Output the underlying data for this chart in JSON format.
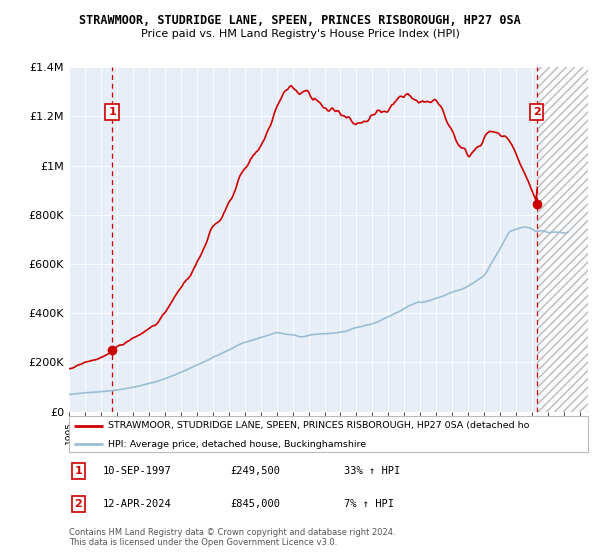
{
  "title": "STRAWMOOR, STUDRIDGE LANE, SPEEN, PRINCES RISBOROUGH, HP27 0SA",
  "subtitle": "Price paid vs. HM Land Registry's House Price Index (HPI)",
  "legend_line1": "STRAWMOOR, STUDRIDGE LANE, SPEEN, PRINCES RISBOROUGH, HP27 0SA (detached ho",
  "legend_line2": "HPI: Average price, detached house, Buckinghamshire",
  "annotation1_label": "1",
  "annotation1_date": "10-SEP-1997",
  "annotation1_price": 249500,
  "annotation1_text": "£249,500",
  "annotation1_hpi": "33% ↑ HPI",
  "annotation2_label": "2",
  "annotation2_date": "12-APR-2024",
  "annotation2_price": 845000,
  "annotation2_text": "£845,000",
  "annotation2_hpi": "7% ↑ HPI",
  "footer": "Contains HM Land Registry data © Crown copyright and database right 2024.\nThis data is licensed under the Open Government Licence v3.0.",
  "sale1_year": 1997.7,
  "sale2_year": 2024.28,
  "xmin": 1995.0,
  "xmax": 2027.5,
  "ymin": 0,
  "ymax": 1400000,
  "background_color": "#ffffff",
  "plot_bg_color": "#e8eef8",
  "grid_color": "#ffffff",
  "red_line_color": "#cc0000",
  "blue_line_color": "#9bbdd4",
  "dashed_line_color": "#cc0000",
  "annotation_box_color": "#cc0000",
  "hatch_region_color": "#cccccc"
}
